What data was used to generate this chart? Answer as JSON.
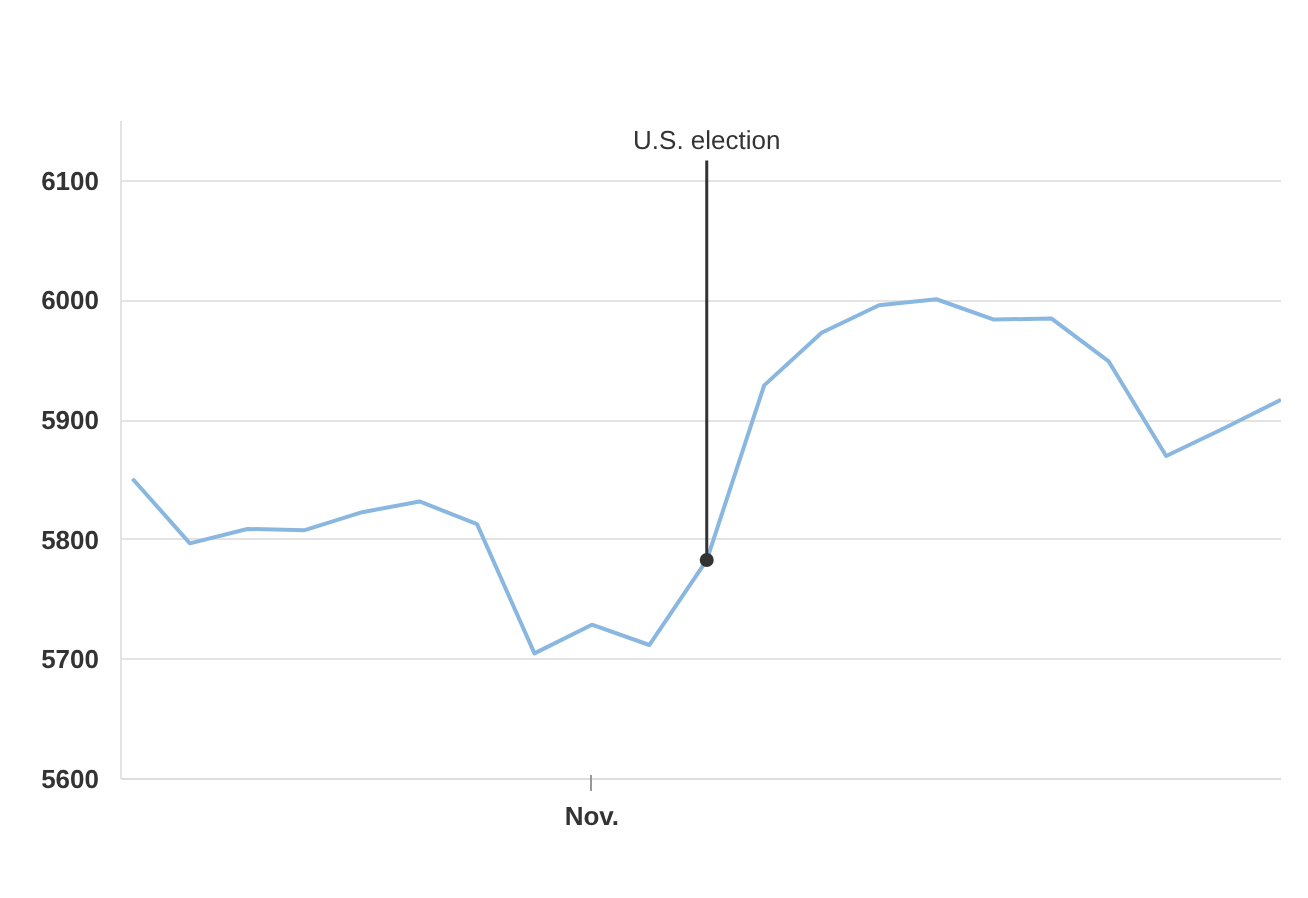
{
  "chart_data": {
    "type": "line",
    "categories": [
      null,
      null,
      null,
      null,
      null,
      null,
      null,
      null,
      "Nov.",
      null,
      null,
      null,
      null,
      null,
      null,
      null,
      null,
      null,
      null,
      null,
      null
    ],
    "series": [
      {
        "color": "#8ab7df",
        "values": [
          5851,
          5797,
          5809,
          5808,
          5823,
          5832,
          5813,
          5705,
          5729,
          5712,
          5783,
          5929,
          5973,
          5996,
          6001,
          5984,
          5985,
          5949,
          5870,
          5893,
          5917
        ]
      }
    ],
    "ylim": [
      5600,
      6150
    ],
    "yticks": [
      5600,
      5700,
      5800,
      5900,
      6000,
      6100
    ],
    "grid": "y",
    "marker": "none",
    "line_style": "solid",
    "annotations": [
      {
        "text": "U.S. election",
        "y": 5783
      }
    ]
  }
}
